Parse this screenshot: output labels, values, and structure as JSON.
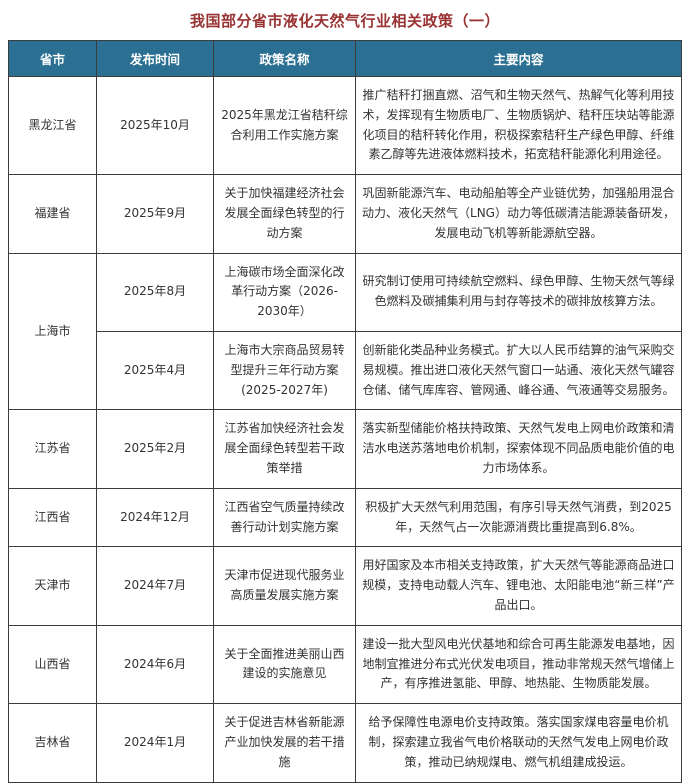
{
  "title": "我国部分省市液化天然气行业相关政策（一）",
  "colors": {
    "header_bg": "#2b7092",
    "header_text": "#ffffff",
    "title_text": "#993333",
    "border": "#3c3c3c",
    "body_text": "#333333"
  },
  "table": {
    "headers": [
      "省市",
      "发布时间",
      "政策名称",
      "主要内容"
    ],
    "rows": [
      {
        "province": "黑龙江省",
        "date": "2025年10月",
        "policy": "2025年黑龙江省秸秆综合利用工作实施方案",
        "content": "推广秸秆打捆直燃、沼气和生物天然气、热解气化等利用技术，发挥现有生物质电厂、生物质锅炉、秸秆压块站等能源化项目的秸秆转化作用，积极探索秸秆生产绿色甲醇、纤维素乙醇等先进液体燃料技术，拓宽秸秆能源化利用途径。"
      },
      {
        "province": "福建省",
        "date": "2025年9月",
        "policy": "关于加快福建经济社会发展全面绿色转型的行动方案",
        "content": "巩固新能源汽车、电动船舶等全产业链优势，加强船用混合动力、液化天然气（LNG）动力等低碳清洁能源装备研发，发展电动飞机等新能源航空器。"
      },
      {
        "province": "上海市",
        "date": "2025年8月",
        "policy": "上海碳市场全面深化改革行动方案（2026-2030年）",
        "content": "研究制订使用可持续航空燃料、绿色甲醇、生物天然气等绿色燃料及碳捕集利用与封存等技术的碳排放核算方法。"
      },
      {
        "province": "",
        "date": "2025年4月",
        "policy": "上海市大宗商品贸易转型提升三年行动方案(2025-2027年)",
        "content": "创新能化类品种业务模式。扩大以人民币结算的油气采购交易规模。推出进口液化天然气窗口一站通、液化天然气罐容仓储、储气库库容、管网通、峰谷通、气液通等交易服务。"
      },
      {
        "province": "江苏省",
        "date": "2025年2月",
        "policy": "江苏省加快经济社会发展全面绿色转型若干政策举措",
        "content": "落实新型储能价格扶持政策、天然气发电上网电价政策和清洁水电送苏落地电价机制，探索体现不同品质电能价值的电力市场体系。"
      },
      {
        "province": "江西省",
        "date": "2024年12月",
        "policy": "江西省空气质量持续改善行动计划实施方案",
        "content": "积极扩大天然气利用范围，有序引导天然气消费，到2025年，天然气占一次能源消费比重提高到6.8%。"
      },
      {
        "province": "天津市",
        "date": "2024年7月",
        "policy": "天津市促进现代服务业高质量发展实施方案",
        "content": "用好国家及本市相关支持政策，扩大天然气等能源商品进口规模，支持电动载人汽车、锂电池、太阳能电池“新三样”产品出口。"
      },
      {
        "province": "山西省",
        "date": "2024年6月",
        "policy": "关于全面推进美丽山西建设的实施意见",
        "content": "建设一批大型风电光伏基地和综合可再生能源发电基地，因地制宜推进分布式光伏发电项目，推动非常规天然气增储上产，有序推进氢能、甲醇、地热能、生物质能发展。"
      },
      {
        "province": "吉林省",
        "date": "2024年1月",
        "policy": "关于促进吉林省新能源产业加快发展的若干措施",
        "content": "给予保障性电源电价支持政策。落实国家煤电容量电价机制，探索建立我省气电价格联动的天然气发电上网电价政策，推动已纳规煤电、燃气机组建成投运。"
      }
    ]
  }
}
